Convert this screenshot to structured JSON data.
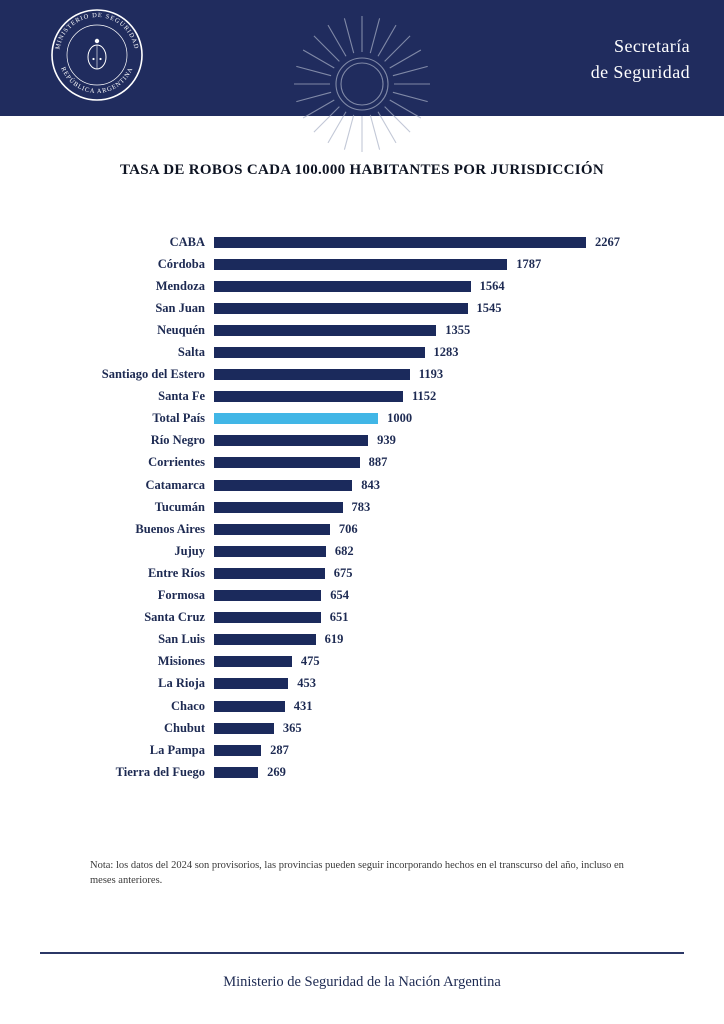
{
  "header": {
    "org_line1": "Secretaría",
    "org_line2": "de Seguridad",
    "seal_top_text": "MINISTERIO DE SEGURIDAD",
    "seal_bottom_text": "REPÚBLICA ARGENTINA"
  },
  "chart_data": {
    "type": "bar",
    "orientation": "horizontal",
    "title": "TASA DE ROBOS CADA 100.000 HABITANTES POR JURISDICCIÓN",
    "categories": [
      "CABA",
      "Córdoba",
      "Mendoza",
      "San Juan",
      "Neuquén",
      "Salta",
      "Santiago del Estero",
      "Santa Fe",
      "Total País",
      "Río Negro",
      "Corrientes",
      "Catamarca",
      "Tucumán",
      "Buenos Aires",
      "Jujuy",
      "Entre Ríos",
      "Formosa",
      "Santa Cruz",
      "San Luis",
      "Misiones",
      "La Rioja",
      "Chaco",
      "Chubut",
      "La Pampa",
      "Tierra del Fuego"
    ],
    "values": [
      2267,
      1787,
      1564,
      1545,
      1355,
      1283,
      1193,
      1152,
      1000,
      939,
      887,
      843,
      783,
      706,
      682,
      675,
      654,
      651,
      619,
      475,
      453,
      431,
      365,
      287,
      269
    ],
    "highlight_category": "Total País",
    "bar_color": "#1b2a5c",
    "highlight_color": "#41b6e6",
    "xlim": [
      0,
      2267
    ],
    "value_labels": true,
    "grid": false,
    "legend": false
  },
  "note": "Nota: los datos del 2024 son provisorios, las provincias pueden seguir incorporando hechos en el transcurso del año, incluso en meses anteriores.",
  "footer": "Ministerio de Seguridad de la Nación Argentina",
  "colors": {
    "band": "#202c5e",
    "bar": "#1b2a5c",
    "highlight": "#41b6e6",
    "footer_line": "#2b3766"
  }
}
